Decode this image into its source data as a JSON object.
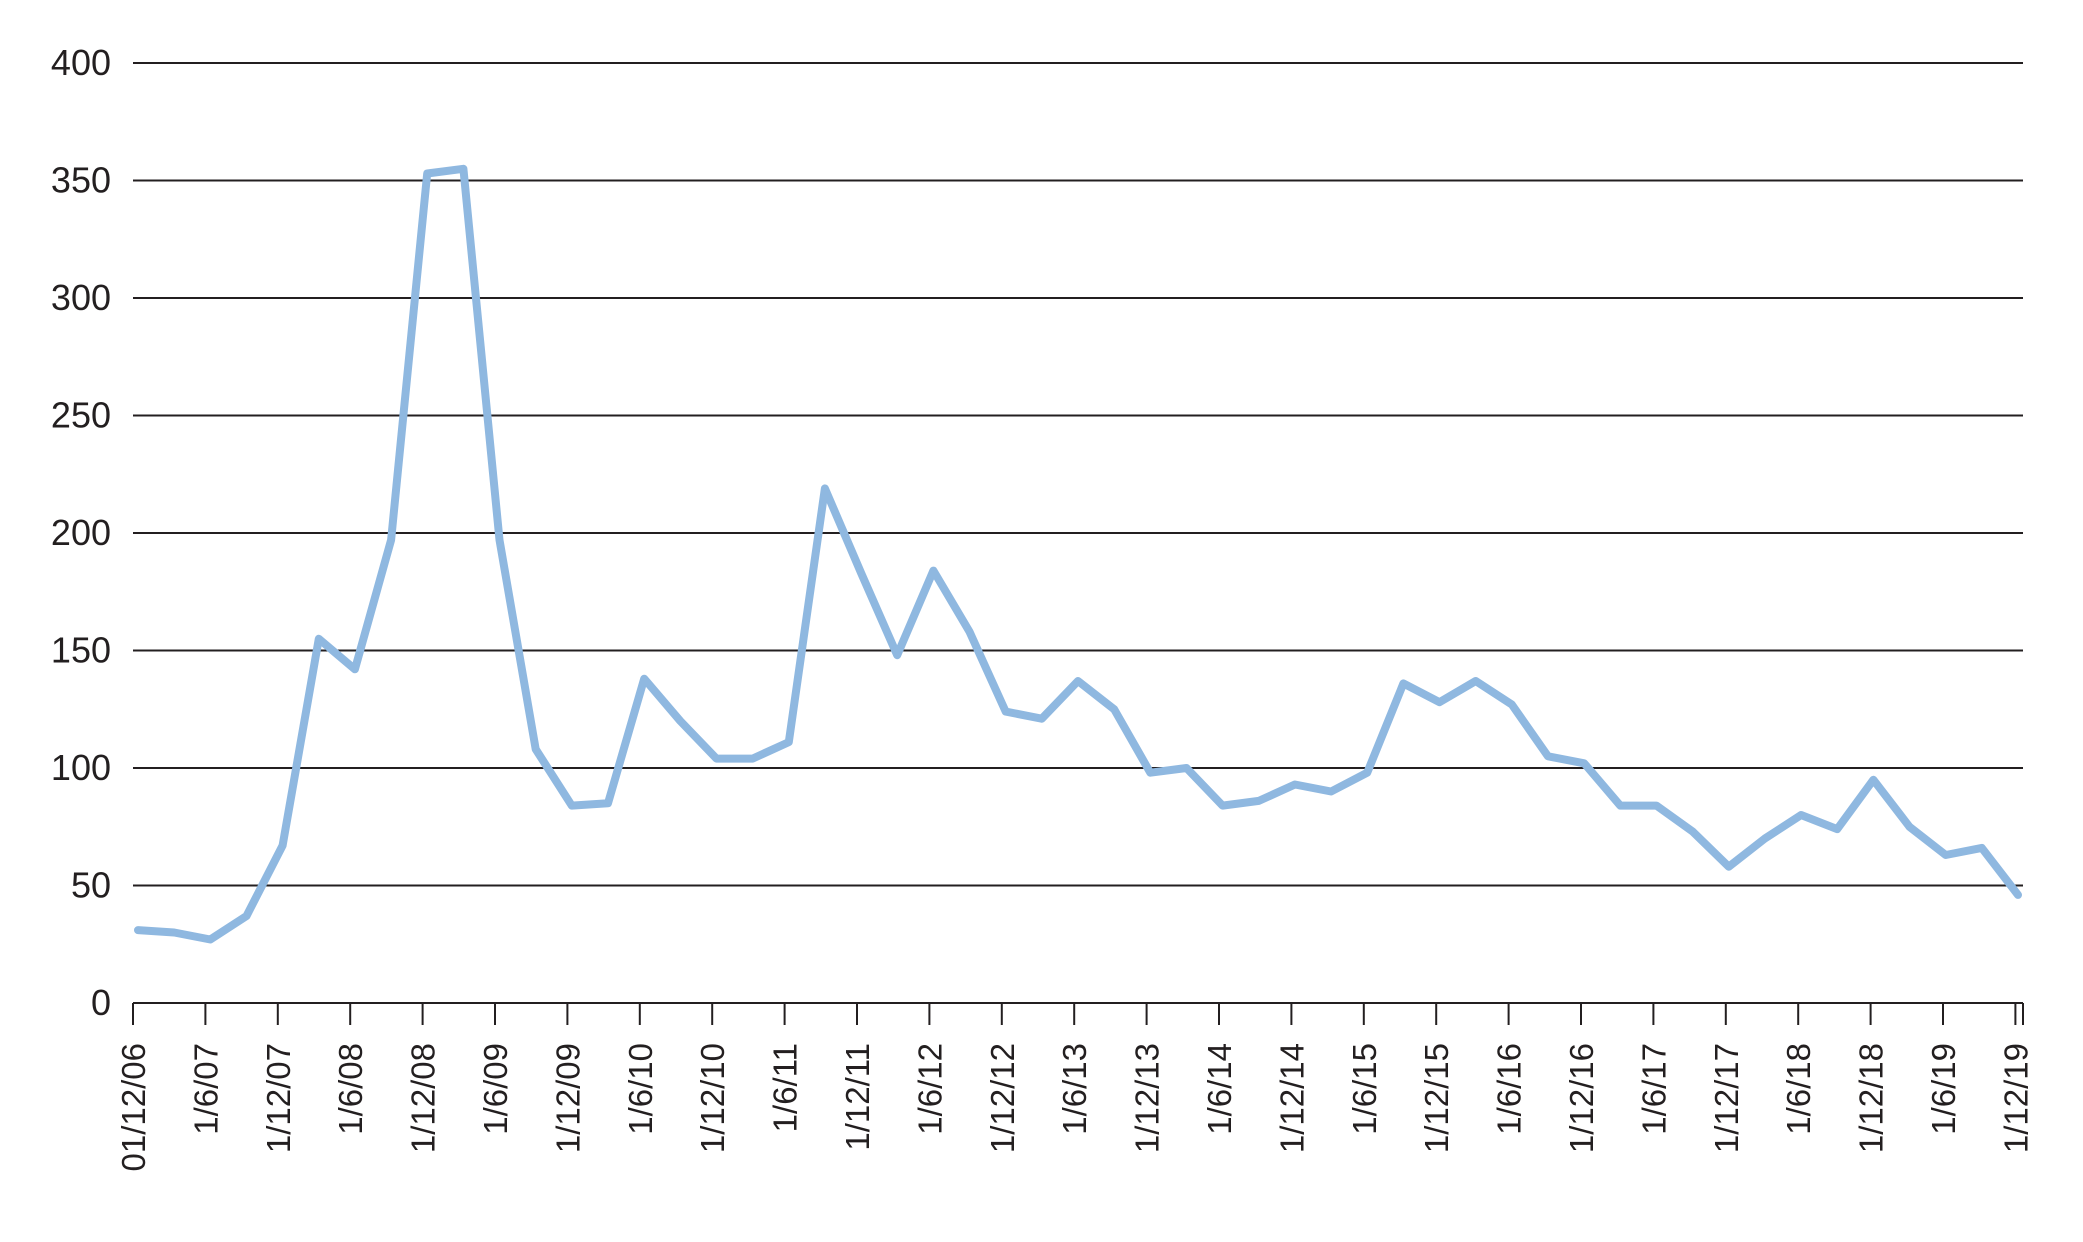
{
  "chart_data": {
    "type": "line",
    "title": "",
    "xlabel": "",
    "ylabel": "",
    "ylim": [
      0,
      400
    ],
    "yticks": [
      0,
      50,
      100,
      150,
      200,
      250,
      300,
      350,
      400
    ],
    "grid": "horizontal",
    "legend": "none",
    "xtick_labels": [
      "01/12/06",
      "1/6/07",
      "1/12/07",
      "1/6/08",
      "1/12/08",
      "1/6/09",
      "1/12/09",
      "1/6/10",
      "1/12/10",
      "1/6/11",
      "1/12/11",
      "1/6/12",
      "1/12/12",
      "1/6/13",
      "1/12/13",
      "1/6/14",
      "1/12/14",
      "1/6/15",
      "1/12/15",
      "1/6/16",
      "1/12/16",
      "1/6/17",
      "1/12/17",
      "1/6/18",
      "1/12/18",
      "1/6/19",
      "1/12/19"
    ],
    "series": [
      {
        "name": "",
        "color": "#8fb8e0",
        "values": [
          31,
          30,
          27,
          37,
          67,
          155,
          142,
          197,
          353,
          355,
          197,
          108,
          84,
          85,
          138,
          120,
          104,
          104,
          111,
          219,
          183,
          148,
          184,
          158,
          124,
          121,
          137,
          125,
          98,
          100,
          84,
          86,
          93,
          90,
          98,
          136,
          128,
          137,
          127,
          105,
          102,
          84,
          84,
          73,
          58,
          70,
          80,
          74,
          95,
          75,
          63,
          66,
          46
        ]
      }
    ]
  }
}
